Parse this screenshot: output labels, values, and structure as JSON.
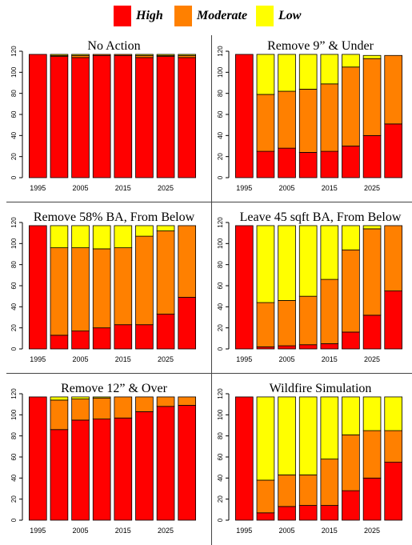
{
  "legend": {
    "items": [
      {
        "label": "High",
        "color": "#ff0000"
      },
      {
        "label": "Moderate",
        "color": "#ff8000"
      },
      {
        "label": "Low",
        "color": "#ffff00"
      }
    ]
  },
  "chart_data": [
    {
      "type": "bar",
      "stacked": true,
      "title": "No Action",
      "categories": [
        "1995",
        "2000",
        "2005",
        "2010",
        "2015",
        "2020",
        "2025",
        "2030"
      ],
      "x_tick_labels": [
        "1995",
        "2005",
        "2015",
        "2025"
      ],
      "y_ticks": [
        0,
        20,
        40,
        60,
        80,
        100,
        120
      ],
      "ylim": [
        0,
        120
      ],
      "series": [
        {
          "name": "High",
          "color": "#ff0000",
          "values": [
            117,
            115,
            114,
            116,
            116,
            114,
            115,
            114
          ]
        },
        {
          "name": "Moderate",
          "color": "#ff8000",
          "values": [
            0,
            1,
            2,
            1,
            1,
            2,
            1,
            2
          ]
        },
        {
          "name": "Low",
          "color": "#ffff00",
          "values": [
            0,
            1,
            1,
            0,
            0,
            1,
            1,
            1
          ]
        }
      ]
    },
    {
      "type": "bar",
      "stacked": true,
      "title": "Remove 9” & Under",
      "categories": [
        "1995",
        "2000",
        "2005",
        "2010",
        "2015",
        "2020",
        "2025",
        "2030"
      ],
      "x_tick_labels": [
        "1995",
        "2005",
        "2015",
        "2025"
      ],
      "y_ticks": [
        0,
        20,
        40,
        60,
        80,
        100,
        120
      ],
      "ylim": [
        0,
        120
      ],
      "series": [
        {
          "name": "High",
          "color": "#ff0000",
          "values": [
            117,
            25,
            28,
            24,
            25,
            30,
            40,
            51
          ]
        },
        {
          "name": "Moderate",
          "color": "#ff8000",
          "values": [
            0,
            54,
            54,
            60,
            64,
            75,
            73,
            65
          ]
        },
        {
          "name": "Low",
          "color": "#ffff00",
          "values": [
            0,
            38,
            35,
            33,
            28,
            12,
            3,
            0
          ]
        }
      ]
    },
    {
      "type": "bar",
      "stacked": true,
      "title": "Remove 58% BA, From Below",
      "categories": [
        "1995",
        "2000",
        "2005",
        "2010",
        "2015",
        "2020",
        "2025",
        "2030"
      ],
      "x_tick_labels": [
        "1995",
        "2005",
        "2015",
        "2025"
      ],
      "y_ticks": [
        0,
        20,
        40,
        60,
        80,
        100,
        120
      ],
      "ylim": [
        0,
        120
      ],
      "series": [
        {
          "name": "High",
          "color": "#ff0000",
          "values": [
            117,
            13,
            17,
            20,
            23,
            23,
            33,
            49
          ]
        },
        {
          "name": "Moderate",
          "color": "#ff8000",
          "values": [
            0,
            83,
            79,
            75,
            73,
            84,
            79,
            68
          ]
        },
        {
          "name": "Low",
          "color": "#ffff00",
          "values": [
            0,
            21,
            21,
            22,
            21,
            10,
            5,
            0
          ]
        }
      ]
    },
    {
      "type": "bar",
      "stacked": true,
      "title": "Leave 45 sqft BA, From Below",
      "categories": [
        "1995",
        "2000",
        "2005",
        "2010",
        "2015",
        "2020",
        "2025",
        "2030"
      ],
      "x_tick_labels": [
        "1995",
        "2005",
        "2015",
        "2025"
      ],
      "y_ticks": [
        0,
        20,
        40,
        60,
        80,
        100,
        120
      ],
      "ylim": [
        0,
        120
      ],
      "series": [
        {
          "name": "High",
          "color": "#ff0000",
          "values": [
            117,
            2,
            3,
            4,
            5,
            16,
            32,
            55
          ]
        },
        {
          "name": "Moderate",
          "color": "#ff8000",
          "values": [
            0,
            42,
            43,
            46,
            61,
            78,
            82,
            62
          ]
        },
        {
          "name": "Low",
          "color": "#ffff00",
          "values": [
            0,
            73,
            71,
            67,
            51,
            23,
            3,
            0
          ]
        }
      ]
    },
    {
      "type": "bar",
      "stacked": true,
      "title": "Remove 12” & Over",
      "categories": [
        "1995",
        "2000",
        "2005",
        "2010",
        "2015",
        "2020",
        "2025",
        "2030"
      ],
      "x_tick_labels": [
        "1995",
        "2005",
        "2015",
        "2025"
      ],
      "y_ticks": [
        0,
        20,
        40,
        60,
        80,
        100,
        120
      ],
      "ylim": [
        0,
        120
      ],
      "series": [
        {
          "name": "High",
          "color": "#ff0000",
          "values": [
            117,
            86,
            95,
            96,
            97,
            103,
            108,
            109
          ]
        },
        {
          "name": "Moderate",
          "color": "#ff8000",
          "values": [
            0,
            28,
            20,
            20,
            20,
            14,
            9,
            8
          ]
        },
        {
          "name": "Low",
          "color": "#ffff00",
          "values": [
            0,
            3,
            2,
            1,
            0,
            0,
            0,
            0
          ]
        }
      ]
    },
    {
      "type": "bar",
      "stacked": true,
      "title": "Wildfire Simulation",
      "categories": [
        "1995",
        "2000",
        "2005",
        "2010",
        "2015",
        "2020",
        "2025",
        "2030"
      ],
      "x_tick_labels": [
        "1995",
        "2005",
        "2015",
        "2025"
      ],
      "y_ticks": [
        0,
        20,
        40,
        60,
        80,
        100,
        120
      ],
      "ylim": [
        0,
        120
      ],
      "series": [
        {
          "name": "High",
          "color": "#ff0000",
          "values": [
            117,
            7,
            13,
            14,
            14,
            28,
            40,
            55
          ]
        },
        {
          "name": "Moderate",
          "color": "#ff8000",
          "values": [
            0,
            31,
            30,
            29,
            44,
            53,
            45,
            30
          ]
        },
        {
          "name": "Low",
          "color": "#ffff00",
          "values": [
            0,
            79,
            74,
            74,
            59,
            36,
            32,
            32
          ]
        }
      ]
    }
  ]
}
